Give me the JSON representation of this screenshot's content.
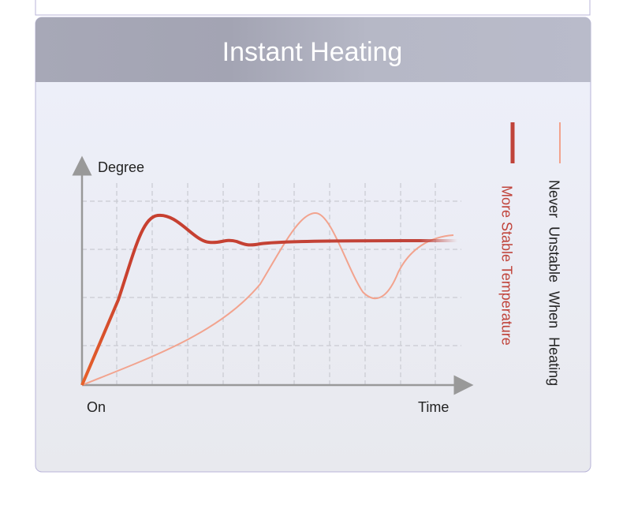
{
  "header": {
    "title": "Instant Heating"
  },
  "chart": {
    "y_label": "Degree",
    "x_origin": "On",
    "x_label": "Time"
  },
  "legend": {
    "items": [
      {
        "label": "More Stable Temperature"
      },
      {
        "label": "Never Unstable When Heating"
      }
    ]
  }
}
